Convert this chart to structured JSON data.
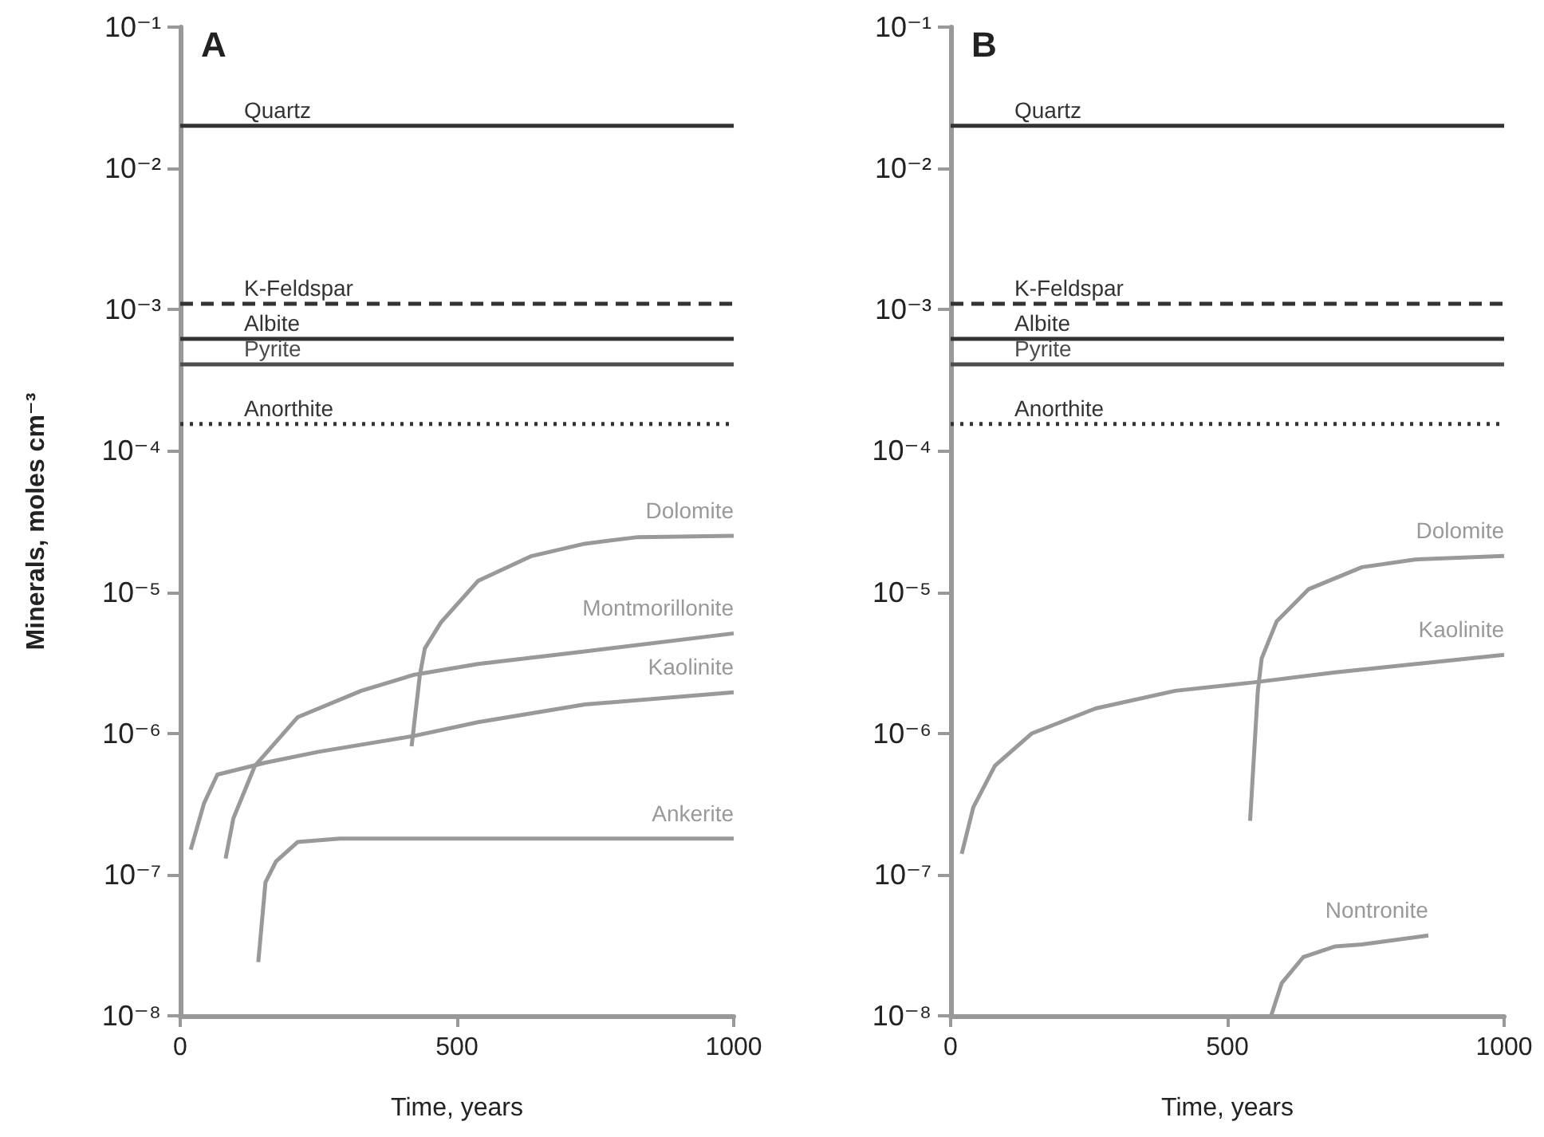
{
  "chart_data": [
    {
      "type": "line",
      "title": "A",
      "xlabel": "Time, years",
      "ylabel": "Minerals, moles cm⁻³",
      "log": "y",
      "grid": false,
      "legend": false,
      "marker": "none",
      "xlim": [
        0,
        1000
      ],
      "xticks": [
        0,
        500,
        1000
      ],
      "ylim": [
        1e-08,
        0.1
      ],
      "yticks": [
        {
          "value": 1e-08,
          "label": "10⁻⁸"
        },
        {
          "value": 1e-07,
          "label": "10⁻⁷"
        },
        {
          "value": 1e-06,
          "label": "10⁻⁶"
        },
        {
          "value": 1e-05,
          "label": "10⁻⁵"
        },
        {
          "value": 0.0001,
          "label": "10⁻⁴"
        },
        {
          "value": 0.001,
          "label": "10⁻³"
        },
        {
          "value": 0.01,
          "label": "10⁻²"
        },
        {
          "value": 0.1,
          "label": "10⁻¹"
        }
      ],
      "series": [
        {
          "name": "Quartz",
          "color": "#333333",
          "line_style": "solid",
          "x": [
            0,
            1000
          ],
          "values": [
            0.02,
            0.02
          ]
        },
        {
          "name": "K-Feldspar",
          "color": "#333333",
          "line_style": "dashed",
          "x": [
            0,
            1000
          ],
          "values": [
            0.0011,
            0.0011
          ]
        },
        {
          "name": "Albite",
          "color": "#333333",
          "line_style": "solid",
          "x": [
            0,
            1000
          ],
          "values": [
            0.00062,
            0.00062
          ]
        },
        {
          "name": "Pyrite",
          "color": "#4d4d4d",
          "line_style": "solid",
          "x": [
            0,
            1000
          ],
          "values": [
            0.00041,
            0.00041
          ]
        },
        {
          "name": "Anorthite",
          "color": "#333333",
          "line_style": "dotted",
          "x": [
            0,
            1000
          ],
          "values": [
            0.000155,
            0.000155
          ]
        },
        {
          "name": "Dolomite",
          "color": "#999999",
          "line_style": "solid",
          "x": [
            418,
            433,
            442,
            471,
            538,
            635,
            731,
            827,
            1000
          ],
          "values": [
            8.1e-07,
            2.6e-06,
            4e-06,
            6.1e-06,
            1.2e-05,
            1.8e-05,
            2.2e-05,
            2.45e-05,
            2.5e-05
          ]
        },
        {
          "name": "Montmorillonite",
          "color": "#999999",
          "line_style": "solid",
          "x": [
            82,
            96,
            135,
            212,
            327,
            423,
            538,
            731,
            1000
          ],
          "values": [
            1.3e-07,
            2.5e-07,
            5.9e-07,
            1.3e-06,
            2e-06,
            2.6e-06,
            3.1e-06,
            3.8e-06,
            5.1e-06
          ]
        },
        {
          "name": "Kaolinite",
          "color": "#999999",
          "line_style": "solid",
          "x": [
            19,
            43,
            67,
            154,
            250,
            423,
            538,
            731,
            1000
          ],
          "values": [
            1.5e-07,
            3.2e-07,
            5.1e-07,
            6.2e-07,
            7.4e-07,
            9.6e-07,
            1.2e-06,
            1.6e-06,
            1.95e-06
          ]
        },
        {
          "name": "Ankerite",
          "color": "#999999",
          "line_style": "solid",
          "x": [
            141,
            154,
            173,
            212,
            288,
            1000
          ],
          "values": [
            2.4e-08,
            8.8e-08,
            1.24e-07,
            1.7e-07,
            1.8e-07,
            1.8e-07
          ]
        }
      ]
    },
    {
      "type": "line",
      "title": "B",
      "xlabel": "Time, years",
      "log": "y",
      "grid": false,
      "legend": false,
      "marker": "none",
      "xlim": [
        0,
        1000
      ],
      "xticks": [
        0,
        500,
        1000
      ],
      "ylim": [
        1e-08,
        0.1
      ],
      "yticks": [
        {
          "value": 1e-08,
          "label": "10⁻⁸"
        },
        {
          "value": 1e-07,
          "label": "10⁻⁷"
        },
        {
          "value": 1e-06,
          "label": "10⁻⁶"
        },
        {
          "value": 1e-05,
          "label": "10⁻⁵"
        },
        {
          "value": 0.0001,
          "label": "10⁻⁴"
        },
        {
          "value": 0.001,
          "label": "10⁻³"
        },
        {
          "value": 0.01,
          "label": "10⁻²"
        },
        {
          "value": 0.1,
          "label": "10⁻¹"
        }
      ],
      "series": [
        {
          "name": "Quartz",
          "color": "#333333",
          "line_style": "solid",
          "x": [
            0,
            1000
          ],
          "values": [
            0.02,
            0.02
          ]
        },
        {
          "name": "K-Feldspar",
          "color": "#333333",
          "line_style": "dashed",
          "x": [
            0,
            1000
          ],
          "values": [
            0.0011,
            0.0011
          ]
        },
        {
          "name": "Albite",
          "color": "#333333",
          "line_style": "solid",
          "x": [
            0,
            1000
          ],
          "values": [
            0.00062,
            0.00062
          ]
        },
        {
          "name": "Pyrite",
          "color": "#4d4d4d",
          "line_style": "solid",
          "x": [
            0,
            1000
          ],
          "values": [
            0.00041,
            0.00041
          ]
        },
        {
          "name": "Anorthite",
          "color": "#333333",
          "line_style": "dotted",
          "x": [
            0,
            1000
          ],
          "values": [
            0.000155,
            0.000155
          ]
        },
        {
          "name": "Dolomite",
          "color": "#999999",
          "line_style": "solid",
          "x": [
            541,
            555,
            562,
            589,
            647,
            743,
            839,
            1000
          ],
          "values": [
            2.4e-07,
            2e-06,
            3.4e-06,
            6.2e-06,
            1.05e-05,
            1.5e-05,
            1.7e-05,
            1.8e-05
          ]
        },
        {
          "name": "Kaolinite",
          "color": "#999999",
          "line_style": "solid",
          "x": [
            20,
            41,
            80,
            147,
            262,
            406,
            550,
            695,
            1000
          ],
          "values": [
            1.4e-07,
            3e-07,
            5.9e-07,
            1e-06,
            1.5e-06,
            2e-06,
            2.3e-06,
            2.7e-06,
            3.6e-06
          ]
        },
        {
          "name": "Nontronite",
          "color": "#999999",
          "line_style": "solid",
          "x": [
            579,
            598,
            637,
            695,
            743,
            863
          ],
          "values": [
            1e-08,
            1.7e-08,
            2.6e-08,
            3.1e-08,
            3.2e-08,
            3.7e-08
          ]
        }
      ]
    }
  ]
}
